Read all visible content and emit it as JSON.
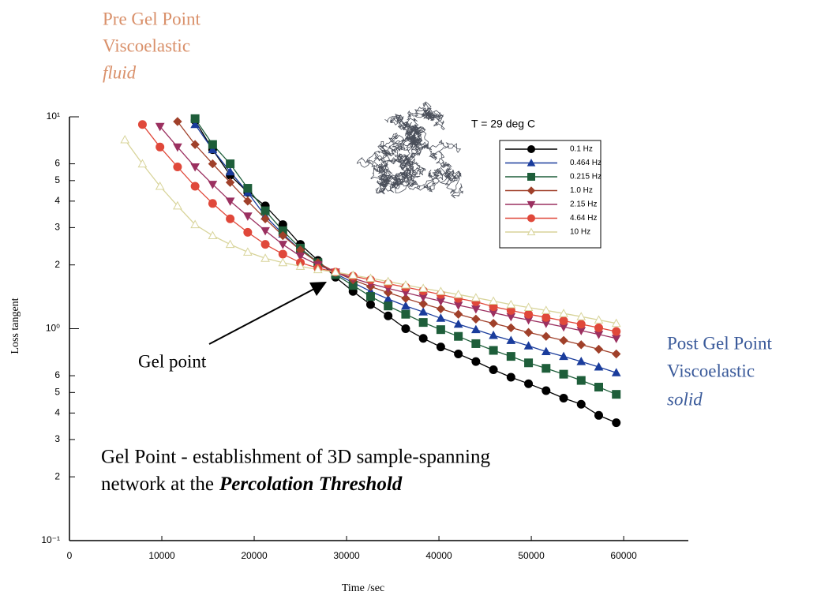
{
  "chart_data": {
    "type": "line",
    "log_y": true,
    "y_label": "Loss tangent",
    "x_label": "Time /sec",
    "legend_title": "T = 29 deg C",
    "annotations": {
      "pre_gel": [
        "Pre Gel Point",
        "Viscoelastic",
        "fluid"
      ],
      "post_gel": [
        "Post Gel Point",
        "Viscoelastic",
        "solid"
      ],
      "gel_point": "Gel point",
      "description": [
        "Gel Point - establishment of 3D sample-spanning",
        "network at the",
        "Percolation Threshold"
      ]
    },
    "xlim": [
      0,
      67000
    ],
    "xticks": [
      0,
      10000,
      20000,
      30000,
      40000,
      50000,
      60000
    ],
    "ylim": [
      0.1,
      10
    ],
    "yticks": [
      {
        "value": 10,
        "label": "10¹"
      },
      6,
      5,
      4,
      3,
      2,
      {
        "value": 1,
        "label": "10⁰"
      },
      {
        "value": 0.6,
        "label": "6"
      },
      {
        "value": 0.5,
        "label": "5"
      },
      {
        "value": 0.4,
        "label": "4"
      },
      {
        "value": 0.3,
        "label": "3"
      },
      {
        "value": 0.2,
        "label": "2"
      },
      {
        "value": 0.1,
        "label": "10⁻¹"
      }
    ],
    "x": [
      6000,
      7900,
      9800,
      11700,
      13600,
      15500,
      17400,
      19300,
      21200,
      23100,
      25000,
      26900,
      28800,
      30700,
      32600,
      34500,
      36400,
      38300,
      40200,
      42100,
      44000,
      45900,
      47800,
      49700,
      51600,
      53500,
      55400,
      57300,
      59200
    ],
    "series": [
      {
        "name": "0.1 Hz",
        "color": "#000000",
        "marker": "circle",
        "values": [
          null,
          null,
          null,
          null,
          9.6,
          7.0,
          5.3,
          4.4,
          3.8,
          3.1,
          2.5,
          2.1,
          1.75,
          1.5,
          1.3,
          1.15,
          1.0,
          0.9,
          0.82,
          0.76,
          0.7,
          0.64,
          0.59,
          0.55,
          0.51,
          0.47,
          0.44,
          0.39,
          0.36
        ]
      },
      {
        "name": "0.464 Hz",
        "color": "#1a3c9c",
        "marker": "triangle-up",
        "values": [
          null,
          null,
          null,
          null,
          9.2,
          7.0,
          5.5,
          4.4,
          3.4,
          2.8,
          2.35,
          2.05,
          1.82,
          1.65,
          1.5,
          1.38,
          1.28,
          1.2,
          1.12,
          1.05,
          0.99,
          0.93,
          0.88,
          0.83,
          0.78,
          0.74,
          0.7,
          0.66,
          0.62
        ]
      },
      {
        "name": "0.215 Hz",
        "color": "#1e5e3a",
        "marker": "square",
        "values": [
          null,
          null,
          null,
          null,
          9.8,
          7.4,
          6.0,
          4.6,
          3.6,
          2.9,
          2.4,
          2.05,
          1.8,
          1.6,
          1.42,
          1.28,
          1.17,
          1.07,
          0.99,
          0.92,
          0.85,
          0.79,
          0.74,
          0.69,
          0.65,
          0.61,
          0.57,
          0.53,
          0.49
        ]
      },
      {
        "name": "1.0 Hz",
        "color": "#a0402a",
        "marker": "diamond",
        "values": [
          null,
          null,
          null,
          9.5,
          7.4,
          6.0,
          4.9,
          4.0,
          3.3,
          2.75,
          2.35,
          2.05,
          1.85,
          1.7,
          1.58,
          1.48,
          1.39,
          1.31,
          1.24,
          1.17,
          1.11,
          1.06,
          1.01,
          0.96,
          0.92,
          0.88,
          0.84,
          0.8,
          0.76
        ]
      },
      {
        "name": "2.15 Hz",
        "color": "#9b3060",
        "marker": "triangle-down",
        "values": [
          null,
          null,
          9.0,
          7.2,
          5.8,
          4.8,
          4.0,
          3.4,
          2.9,
          2.5,
          2.2,
          2.0,
          1.85,
          1.73,
          1.63,
          1.55,
          1.48,
          1.41,
          1.35,
          1.29,
          1.24,
          1.19,
          1.14,
          1.1,
          1.06,
          1.02,
          0.98,
          0.94,
          0.9
        ]
      },
      {
        "name": "4.64 Hz",
        "color": "#e0483a",
        "marker": "circle",
        "values": [
          null,
          9.2,
          7.2,
          5.8,
          4.7,
          3.9,
          3.3,
          2.85,
          2.5,
          2.25,
          2.05,
          1.93,
          1.85,
          1.77,
          1.7,
          1.63,
          1.57,
          1.51,
          1.45,
          1.39,
          1.34,
          1.27,
          1.22,
          1.17,
          1.13,
          1.09,
          1.05,
          1.01,
          0.97
        ]
      },
      {
        "name": "10 Hz",
        "color": "#d8d49a",
        "marker": "open-triangle",
        "values": [
          7.8,
          6.0,
          4.7,
          3.8,
          3.1,
          2.75,
          2.5,
          2.3,
          2.15,
          2.05,
          1.97,
          1.9,
          1.85,
          1.79,
          1.73,
          1.67,
          1.61,
          1.55,
          1.5,
          1.45,
          1.4,
          1.35,
          1.3,
          1.26,
          1.22,
          1.18,
          1.14,
          1.1,
          1.06
        ]
      }
    ]
  }
}
